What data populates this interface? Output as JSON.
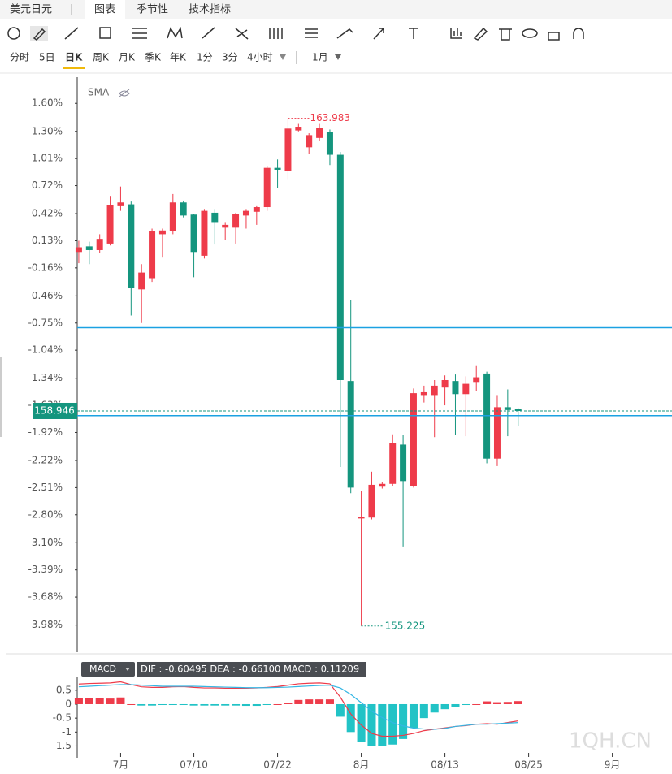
{
  "tabs": {
    "symbol": "美元日元",
    "items": [
      "图表",
      "季节性",
      "技术指标"
    ]
  },
  "periods": [
    "分时",
    "5日",
    "日K",
    "周K",
    "月K",
    "季K",
    "年K",
    "1分",
    "3分",
    "4小时"
  ],
  "range": "1月",
  "chart_data": [
    {
      "type": "candlestick",
      "indicator": "SMA",
      "up_color": "#ee3b4a",
      "down_color": "#14957e",
      "xlim": [
        -0.15,
        56.7
      ],
      "xticks": [
        {
          "value": 4,
          "label": "7月"
        },
        {
          "value": 11,
          "label": "07/10"
        },
        {
          "value": 19,
          "label": "07/22"
        },
        {
          "value": 27,
          "label": "8月"
        },
        {
          "value": 35,
          "label": "08/13"
        },
        {
          "value": 43,
          "label": "08/25"
        },
        {
          "value": 51,
          "label": "9月"
        }
      ],
      "ylim": [
        -4.27,
        1.88
      ],
      "yticks": [
        {
          "value": 1.6,
          "label": "1.60%"
        },
        {
          "value": 1.3,
          "label": "1.30%"
        },
        {
          "value": 1.01,
          "label": "1.01%"
        },
        {
          "value": 0.72,
          "label": "0.72%"
        },
        {
          "value": 0.42,
          "label": "0.42%"
        },
        {
          "value": 0.13,
          "label": "0.13%"
        },
        {
          "value": -0.16,
          "label": "-0.16%"
        },
        {
          "value": -0.46,
          "label": "-0.46%"
        },
        {
          "value": -0.75,
          "label": "-0.75%"
        },
        {
          "value": -1.04,
          "label": "-1.04%"
        },
        {
          "value": -1.34,
          "label": "-1.34%"
        },
        {
          "value": -1.63,
          "label": "-1.63%"
        },
        {
          "value": -1.92,
          "label": "-1.92%"
        },
        {
          "value": -2.22,
          "label": "-2.22%"
        },
        {
          "value": -2.51,
          "label": "-2.51%"
        },
        {
          "value": -2.8,
          "label": "-2.80%"
        },
        {
          "value": -3.1,
          "label": "-3.10%"
        },
        {
          "value": -3.39,
          "label": "-3.39%"
        },
        {
          "value": -3.68,
          "label": "-3.68%"
        },
        {
          "value": -3.98,
          "label": "-3.98%"
        }
      ],
      "open": [
        0.01,
        0.07,
        0.03,
        0.1,
        0.5,
        0.52,
        -0.39,
        -0.27,
        0.2,
        0.23,
        0.54,
        0.41,
        -0.03,
        0.43,
        0.27,
        0.27,
        0.4,
        0.44,
        0.49,
        0.91,
        0.88,
        1.31,
        1.13,
        1.23,
        1.29,
        1.05,
        -1.37,
        -2.84,
        -2.83,
        -2.5,
        -2.47,
        -2.05,
        -2.49,
        -1.52,
        -1.52,
        -1.44,
        -1.37,
        -1.51,
        -1.38,
        -1.29,
        -2.2,
        -1.65,
        -1.67
      ],
      "close": [
        0.06,
        0.03,
        0.15,
        0.51,
        0.54,
        -0.37,
        -0.21,
        0.23,
        0.24,
        0.54,
        0.4,
        0.01,
        0.45,
        0.33,
        0.3,
        0.42,
        0.45,
        0.49,
        0.91,
        0.89,
        1.33,
        1.35,
        1.26,
        1.34,
        1.05,
        -1.36,
        -2.51,
        -2.82,
        -2.48,
        -2.47,
        -2.03,
        -2.44,
        -1.5,
        -1.49,
        -1.42,
        -1.36,
        -1.51,
        -1.4,
        -1.33,
        -2.2,
        -1.65,
        -1.68,
        -1.69
      ],
      "low": [
        -0.11,
        -0.12,
        0.0,
        0.08,
        0.45,
        -0.67,
        -0.75,
        -0.31,
        -0.05,
        0.2,
        0.38,
        -0.26,
        -0.06,
        0.09,
        0.14,
        0.1,
        0.26,
        0.3,
        0.45,
        0.69,
        0.78,
        1.3,
        1.06,
        1.2,
        0.94,
        -2.29,
        -2.57,
        -3.99,
        -2.85,
        -2.52,
        -2.49,
        -3.14,
        -2.51,
        -1.6,
        -1.97,
        -1.63,
        -1.95,
        -1.96,
        -1.48,
        -2.25,
        -2.28,
        -1.96,
        -1.85
      ],
      "high": [
        0.13,
        0.12,
        0.2,
        0.61,
        0.71,
        0.55,
        -0.12,
        0.26,
        0.26,
        0.63,
        0.56,
        0.42,
        0.47,
        0.47,
        0.33,
        0.43,
        0.47,
        0.5,
        0.93,
        1.0,
        1.44,
        1.38,
        1.28,
        1.38,
        1.32,
        1.08,
        -0.5,
        -2.55,
        -2.34,
        -2.45,
        -1.94,
        -1.95,
        -1.45,
        -1.42,
        -1.36,
        -1.31,
        -1.3,
        -1.32,
        -1.21,
        -1.27,
        -1.52,
        -1.46,
        -1.66
      ],
      "high_label": "163.983",
      "low_label": "155.225",
      "last_label": "158.946",
      "hlines": [
        -0.8,
        -1.74
      ],
      "hline_color": "#1ba1e2"
    },
    {
      "type": "macd",
      "indicator": "MACD",
      "legend": "DIF : -0.60495  DEA : -0.66100  MACD : 0.11209",
      "ylim": [
        -1.69,
        0.99
      ],
      "yticks": [
        0.5,
        0,
        -0.5,
        -1,
        -1.5
      ],
      "histogram": [
        0.22,
        0.21,
        0.21,
        0.2,
        0.24,
        0,
        -0.05,
        -0.05,
        -0.03,
        -0.03,
        -0.03,
        -0.05,
        -0.05,
        -0.05,
        -0.05,
        -0.05,
        -0.06,
        -0.06,
        -0.03,
        0,
        0.05,
        0.15,
        0.17,
        0.17,
        0.17,
        -0.45,
        -1.0,
        -1.35,
        -1.5,
        -1.5,
        -1.45,
        -1.25,
        -0.85,
        -0.5,
        -0.3,
        -0.18,
        -0.1,
        -0.03,
        0,
        0.1,
        0.07,
        0.08,
        0.11
      ],
      "series": [
        {
          "name": "DIF",
          "color": "#ee3b4a",
          "values": [
            0.72,
            0.74,
            0.75,
            0.76,
            0.8,
            0.7,
            0.62,
            0.6,
            0.6,
            0.62,
            0.63,
            0.6,
            0.58,
            0.58,
            0.57,
            0.57,
            0.57,
            0.58,
            0.6,
            0.63,
            0.68,
            0.73,
            0.75,
            0.76,
            0.73,
            0.25,
            -0.35,
            -0.75,
            -1.05,
            -1.15,
            -1.15,
            -1.12,
            -1.05,
            -0.95,
            -0.9,
            -0.85,
            -0.8,
            -0.77,
            -0.72,
            -0.7,
            -0.72,
            -0.66,
            -0.6
          ]
        },
        {
          "name": "DEA",
          "color": "#34b6e4",
          "values": [
            0.62,
            0.64,
            0.66,
            0.68,
            0.7,
            0.7,
            0.68,
            0.66,
            0.64,
            0.64,
            0.64,
            0.64,
            0.63,
            0.62,
            0.61,
            0.6,
            0.59,
            0.59,
            0.59,
            0.6,
            0.61,
            0.63,
            0.65,
            0.67,
            0.68,
            0.58,
            0.35,
            0.05,
            -0.25,
            -0.48,
            -0.66,
            -0.78,
            -0.86,
            -0.89,
            -0.9,
            -0.87,
            -0.8,
            -0.76,
            -0.72,
            -0.72,
            -0.7,
            -0.68,
            -0.66
          ]
        }
      ],
      "pos_color": "#ee3b4a",
      "neg_color": "#22c3c6"
    }
  ],
  "watermark": "1QH.CN"
}
